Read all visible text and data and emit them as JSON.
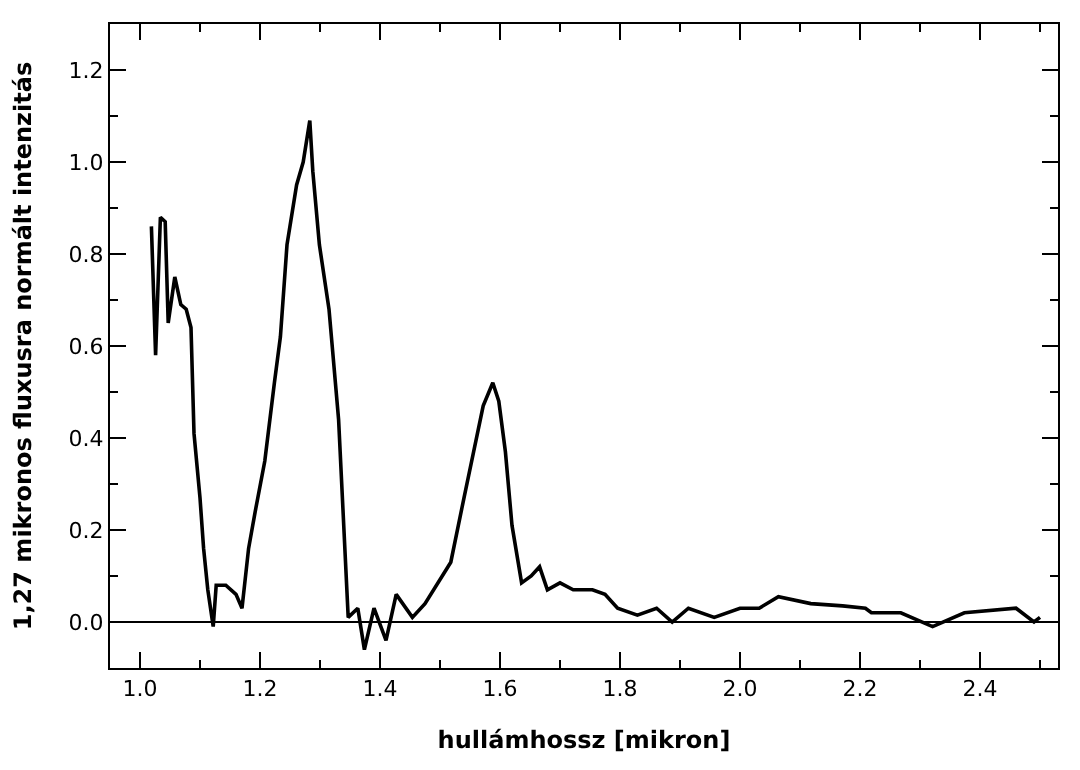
{
  "chart_data": {
    "type": "line",
    "xlabel": "hullámhossz [mikron]",
    "ylabel": "1,27 mikronos fluxusra normált intenzitás",
    "series": [
      {
        "color": "#000000",
        "x": [
          1.019,
          1.026,
          1.034,
          1.042,
          1.047,
          1.058,
          1.068,
          1.077,
          1.085,
          1.09,
          1.1,
          1.106,
          1.113,
          1.122,
          1.127,
          1.143,
          1.16,
          1.17,
          1.181,
          1.192,
          1.208,
          1.224,
          1.234,
          1.245,
          1.261,
          1.272,
          1.283,
          1.288,
          1.299,
          1.315,
          1.331,
          1.347,
          1.363,
          1.374,
          1.39,
          1.41,
          1.427,
          1.454,
          1.475,
          1.518,
          1.54,
          1.556,
          1.572,
          1.588,
          1.598,
          1.609,
          1.62,
          1.636,
          1.652,
          1.666,
          1.679,
          1.7,
          1.722,
          1.754,
          1.775,
          1.796,
          1.829,
          1.861,
          1.887,
          1.914,
          1.957,
          2.0,
          2.032,
          2.064,
          2.118,
          2.171,
          2.209,
          2.219,
          2.268,
          2.321,
          2.374,
          2.46,
          2.49,
          2.5
        ],
        "values": [
          0.86,
          0.58,
          0.88,
          0.87,
          0.65,
          0.75,
          0.69,
          0.68,
          0.64,
          0.41,
          0.27,
          0.16,
          0.07,
          -0.01,
          0.08,
          0.08,
          0.06,
          0.03,
          0.16,
          0.24,
          0.35,
          0.52,
          0.62,
          0.82,
          0.95,
          1.0,
          1.09,
          0.98,
          0.82,
          0.68,
          0.44,
          0.01,
          0.03,
          -0.06,
          0.03,
          -0.04,
          0.06,
          0.01,
          0.04,
          0.13,
          0.27,
          0.37,
          0.47,
          0.52,
          0.48,
          0.37,
          0.21,
          0.085,
          0.1,
          0.12,
          0.07,
          0.085,
          0.07,
          0.07,
          0.06,
          0.03,
          0.015,
          0.03,
          0.0,
          0.03,
          0.01,
          0.03,
          0.03,
          0.055,
          0.04,
          0.035,
          0.03,
          0.02,
          0.02,
          -0.01,
          0.02,
          0.03,
          0.0,
          0.01
        ]
      }
    ],
    "xlim": [
      0.95,
      2.53
    ],
    "ylim": [
      -0.1,
      1.3
    ],
    "xticks": [
      {
        "value": 1.0,
        "label": "1.0"
      },
      {
        "value": 1.2,
        "label": "1.2"
      },
      {
        "value": 1.4,
        "label": "1.4"
      },
      {
        "value": 1.6,
        "label": "1.6"
      },
      {
        "value": 1.8,
        "label": "1.8"
      },
      {
        "value": 2.0,
        "label": "2.0"
      },
      {
        "value": 2.2,
        "label": "2.2"
      },
      {
        "value": 2.4,
        "label": "2.4"
      }
    ],
    "yticks": [
      {
        "value": 0.0,
        "label": "0.0"
      },
      {
        "value": 0.2,
        "label": "0.2"
      },
      {
        "value": 0.4,
        "label": "0.4"
      },
      {
        "value": 0.6,
        "label": "0.6"
      },
      {
        "value": 0.8,
        "label": "0.8"
      },
      {
        "value": 1.0,
        "label": "1.0"
      },
      {
        "value": 1.2,
        "label": "1.2"
      }
    ],
    "ref_lines": [
      {
        "axis": "y",
        "value": 0,
        "color": "#000000",
        "line_style": "solid"
      }
    ],
    "legend": false,
    "marker": "none",
    "line_style": "solid"
  }
}
